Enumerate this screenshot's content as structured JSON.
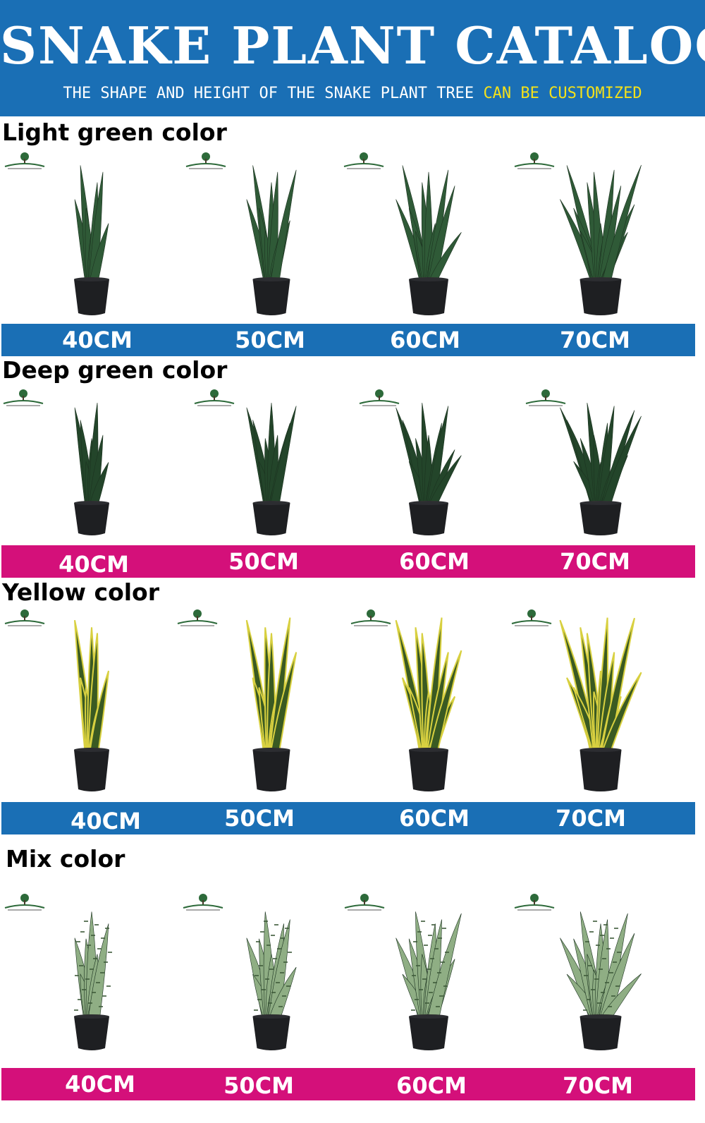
{
  "banner": {
    "title": "SNAKE PLANT CATALOG",
    "subtitle_main": "THE SHAPE AND HEIGHT OF THE SNAKE PLANT TREE",
    "subtitle_highlight": "CAN BE CUSTOMIZED",
    "background": "#1a6fb5",
    "highlight_color": "#f4e11a"
  },
  "sections": [
    {
      "title": "Light green color",
      "bar_color": "#1a6fb5",
      "leaf_color": "#2f5a37",
      "sizes": [
        "40CM",
        "50CM",
        "60CM",
        "70CM"
      ]
    },
    {
      "title": "Deep green color",
      "bar_color": "#d4107a",
      "leaf_color": "#23452a",
      "sizes": [
        "40CM",
        "50CM",
        "60CM",
        "70CM"
      ]
    },
    {
      "title": "Yellow color",
      "bar_color": "#1a6fb5",
      "leaf_color": "#3a5a22",
      "edge_color": "#d8d040",
      "sizes": [
        "40CM",
        "50CM",
        "60CM",
        "70CM"
      ]
    },
    {
      "title": "Mix color",
      "bar_color": "#d4107a",
      "leaf_color": "#8fae84",
      "sizes": [
        "40CM",
        "50CM",
        "60CM",
        "70CM"
      ]
    }
  ],
  "icons": {
    "logo": "tree-logo-icon",
    "pot": "pot-icon"
  }
}
